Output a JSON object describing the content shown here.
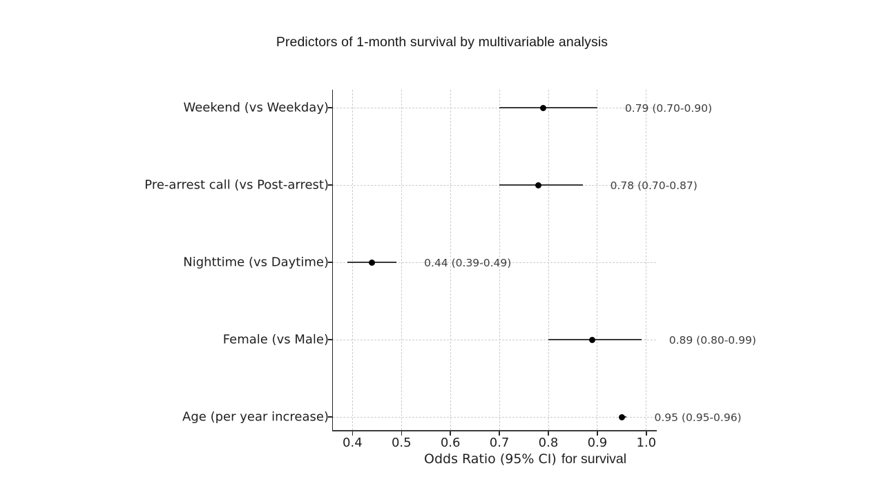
{
  "chart_data": {
    "type": "scatter",
    "subtype": "forest-plot",
    "title": "Predictors of 1-month survival by multivariable analysis",
    "xlabel": "Odds Ratio (95% CI)",
    "xlabel_suffix": "for survival",
    "categories": [
      "Weekend (vs Weekday)",
      "Pre-arrest call (vs Post-arrest)",
      "Nighttime (vs Daytime)",
      "Female (vs Male)",
      "Age (per year increase)"
    ],
    "series": [
      {
        "name": "Odds Ratio (95% CI)",
        "values": [
          0.79,
          0.78,
          0.44,
          0.89,
          0.95
        ],
        "ci_low": [
          0.7,
          0.7,
          0.39,
          0.8,
          0.95
        ],
        "ci_high": [
          0.9,
          0.87,
          0.49,
          0.99,
          0.96
        ]
      }
    ],
    "point_labels": [
      "0.79 (0.70-0.90)",
      "0.78 (0.70-0.87)",
      "0.44 (0.39-0.49)",
      "0.89 (0.80-0.99)",
      "0.95 (0.95-0.96)"
    ],
    "x_ticks": [
      0.4,
      0.5,
      0.6,
      0.7,
      0.8,
      0.9,
      1.0
    ],
    "x_tick_labels": [
      "0.4",
      "0.5",
      "0.6",
      "0.7",
      "0.8",
      "0.9",
      "1.0"
    ],
    "xlim": [
      0.36,
      1.02
    ],
    "grid": true,
    "legend": false,
    "colors": {
      "background": "#ffffff",
      "marker": "#000000",
      "ci_line": "#383838",
      "grid": "#cccccc",
      "value_text": "#3d3d3d",
      "axis_text": "#1f1f1f",
      "spine": "#262626"
    }
  }
}
